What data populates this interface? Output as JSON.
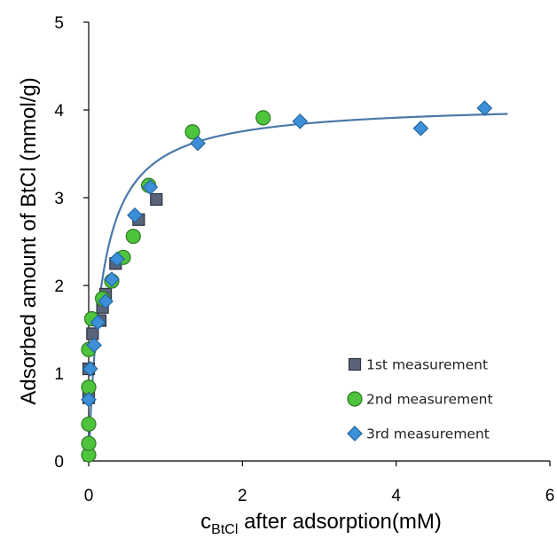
{
  "chart_data": {
    "type": "scatter",
    "title": "",
    "xlabel": {
      "main": "c",
      "subscript": "BtCl",
      "rest": " after adsorption(mM)"
    },
    "ylabel": "Adsorbed amount of BtCl (mmol/g)",
    "xlim": [
      0,
      6
    ],
    "ylim": [
      0,
      5
    ],
    "xticks": [
      "0",
      "2",
      "4",
      "6"
    ],
    "yticks": [
      "0",
      "1",
      "2",
      "3",
      "4",
      "5"
    ],
    "grid": false,
    "legend_position": "bottom-right",
    "fit_curve": {
      "model": "langmuir",
      "qmax": 4.08,
      "K": 5.8,
      "x_range": [
        0.0,
        5.45
      ],
      "color": "#4a79a8"
    },
    "series": [
      {
        "name": "1st measurement",
        "marker": "square",
        "color": "#59647a",
        "stroke": "#2b3340",
        "points": [
          [
            0.0,
            0.72
          ],
          [
            0.0,
            1.05
          ],
          [
            0.05,
            1.45
          ],
          [
            0.15,
            1.6
          ],
          [
            0.18,
            1.75
          ],
          [
            0.22,
            1.9
          ],
          [
            0.35,
            2.25
          ],
          [
            0.65,
            2.75
          ],
          [
            0.88,
            2.98
          ]
        ]
      },
      {
        "name": "2nd measurement",
        "marker": "circle",
        "color": "#4dc43c",
        "stroke": "#2d7a22",
        "points": [
          [
            0.0,
            0.07
          ],
          [
            0.0,
            0.2
          ],
          [
            0.0,
            0.42
          ],
          [
            0.0,
            0.84
          ],
          [
            0.0,
            1.27
          ],
          [
            0.04,
            1.62
          ],
          [
            0.18,
            1.85
          ],
          [
            0.3,
            2.05
          ],
          [
            0.45,
            2.32
          ],
          [
            0.58,
            2.56
          ],
          [
            0.78,
            3.14
          ],
          [
            1.35,
            3.75
          ],
          [
            2.27,
            3.91
          ]
        ]
      },
      {
        "name": "3rd measurement",
        "marker": "diamond",
        "color": "#3c8fd8",
        "stroke": "#25679f",
        "points": [
          [
            0.0,
            0.7
          ],
          [
            0.02,
            1.05
          ],
          [
            0.07,
            1.32
          ],
          [
            0.12,
            1.58
          ],
          [
            0.22,
            1.82
          ],
          [
            0.3,
            2.07
          ],
          [
            0.37,
            2.3
          ],
          [
            0.6,
            2.8
          ],
          [
            0.8,
            3.12
          ],
          [
            1.42,
            3.62
          ],
          [
            2.75,
            3.87
          ],
          [
            4.32,
            3.79
          ],
          [
            5.15,
            4.02
          ]
        ]
      }
    ]
  }
}
